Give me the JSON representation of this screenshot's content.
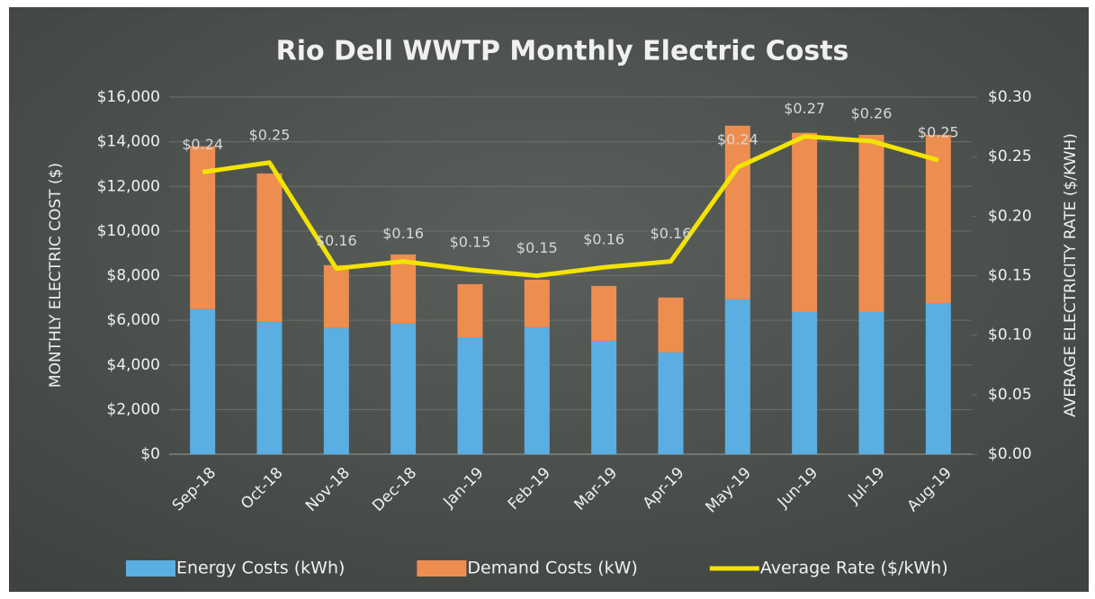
{
  "chart_data": {
    "type": "bar",
    "title": "Rio Dell WWTP Monthly Electric Costs",
    "categories": [
      "Sep-18",
      "Oct-18",
      "Nov-18",
      "Dec-18",
      "Jan-19",
      "Feb-19",
      "Mar-19",
      "Apr-19",
      "May-19",
      "Jun-19",
      "Jul-19",
      "Aug-19"
    ],
    "series": [
      {
        "name": "Energy Costs (kWh)",
        "color": "#5aaee2",
        "values": [
          6500,
          5930,
          5650,
          5850,
          5240,
          5690,
          5080,
          4560,
          6940,
          6370,
          6370,
          6770
        ]
      },
      {
        "name": "Demand Costs (kW)",
        "color": "#ee8d50",
        "values": [
          7300,
          6650,
          2820,
          3100,
          2380,
          2130,
          2460,
          2460,
          7780,
          8030,
          7940,
          7540
        ]
      },
      {
        "name": "Average Rate ($/kWh)",
        "color": "#f2e400",
        "type": "line",
        "axis": "y2",
        "values": [
          0.237,
          0.245,
          0.156,
          0.162,
          0.155,
          0.15,
          0.157,
          0.162,
          0.241,
          0.267,
          0.263,
          0.247
        ],
        "value_labels": [
          "$0.24",
          "$0.25",
          "$0.16",
          "$0.16",
          "$0.15",
          "$0.15",
          "$0.16",
          "$0.16",
          "$0.24",
          "$0.27",
          "$0.26",
          "$0.25"
        ]
      }
    ],
    "stacked": true,
    "ylabel": "MONTHLY ELECTRIC COST ($)",
    "y2label": "AVERAGE ELECTRICITY RATE ($/KWH)",
    "ylim": [
      0,
      16000
    ],
    "yticks": [
      {
        "value": 0,
        "label": "$0"
      },
      {
        "value": 2000,
        "label": "$2,000"
      },
      {
        "value": 4000,
        "label": "$4,000"
      },
      {
        "value": 6000,
        "label": "$6,000"
      },
      {
        "value": 8000,
        "label": "$8,000"
      },
      {
        "value": 10000,
        "label": "$10,000"
      },
      {
        "value": 12000,
        "label": "$12,000"
      },
      {
        "value": 14000,
        "label": "$14,000"
      },
      {
        "value": 16000,
        "label": "$16,000"
      }
    ],
    "y2lim": [
      0,
      0.3
    ],
    "y2ticks": [
      {
        "value": 0,
        "label": "$0.00"
      },
      {
        "value": 0.05,
        "label": "$0.05"
      },
      {
        "value": 0.1,
        "label": "$0.10"
      },
      {
        "value": 0.15,
        "label": "$0.15"
      },
      {
        "value": 0.2,
        "label": "$0.20"
      },
      {
        "value": 0.25,
        "label": "$0.25"
      },
      {
        "value": 0.3,
        "label": "$0.30"
      }
    ],
    "grid": true,
    "legend": "bottom"
  }
}
